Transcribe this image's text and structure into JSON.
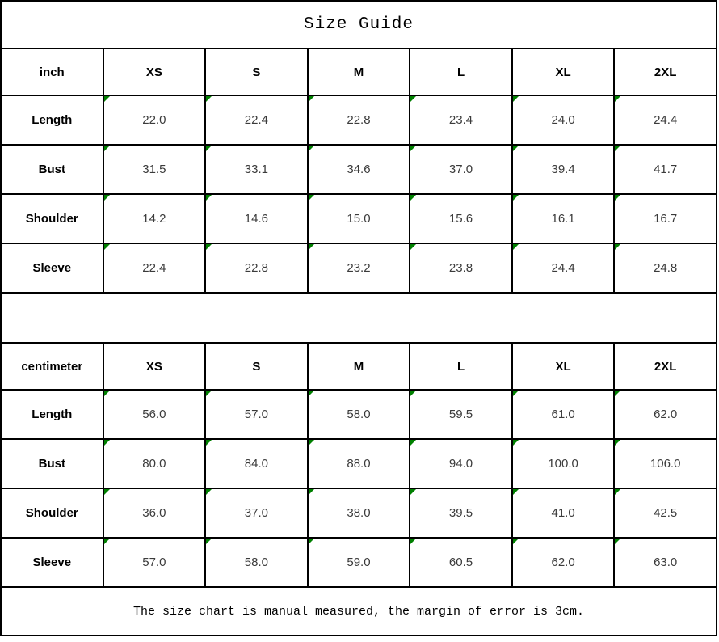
{
  "title": "Size Guide",
  "footer_note": "The size chart is manual measured, the margin of error is 3cm.",
  "colors": {
    "indicator_green": "#008000",
    "border_black": "#000000",
    "value_text": "#3b3b3b"
  },
  "icons": {
    "cell_corner_flag": "green-triangle-top-left"
  },
  "tables": [
    {
      "unit_label": "inch",
      "size_headers": [
        "XS",
        "S",
        "M",
        "L",
        "XL",
        "2XL"
      ],
      "rows": [
        {
          "label": "Length",
          "values": [
            "22.0",
            "22.4",
            "22.8",
            "23.4",
            "24.0",
            "24.4"
          ]
        },
        {
          "label": "Bust",
          "values": [
            "31.5",
            "33.1",
            "34.6",
            "37.0",
            "39.4",
            "41.7"
          ]
        },
        {
          "label": "Shoulder",
          "values": [
            "14.2",
            "14.6",
            "15.0",
            "15.6",
            "16.1",
            "16.7"
          ]
        },
        {
          "label": "Sleeve",
          "values": [
            "22.4",
            "22.8",
            "23.2",
            "23.8",
            "24.4",
            "24.8"
          ]
        }
      ]
    },
    {
      "unit_label": "centimeter",
      "size_headers": [
        "XS",
        "S",
        "M",
        "L",
        "XL",
        "2XL"
      ],
      "rows": [
        {
          "label": "Length",
          "values": [
            "56.0",
            "57.0",
            "58.0",
            "59.5",
            "61.0",
            "62.0"
          ]
        },
        {
          "label": "Bust",
          "values": [
            "80.0",
            "84.0",
            "88.0",
            "94.0",
            "100.0",
            "106.0"
          ]
        },
        {
          "label": "Shoulder",
          "values": [
            "36.0",
            "37.0",
            "38.0",
            "39.5",
            "41.0",
            "42.5"
          ]
        },
        {
          "label": "Sleeve",
          "values": [
            "57.0",
            "58.0",
            "59.0",
            "60.5",
            "62.0",
            "63.0"
          ]
        }
      ]
    }
  ]
}
